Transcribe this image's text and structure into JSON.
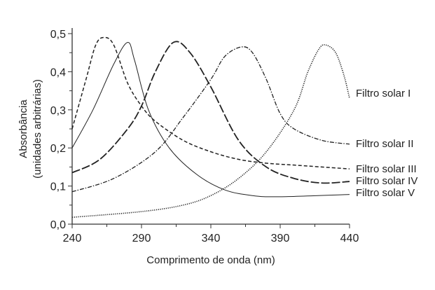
{
  "chart_data": {
    "type": "line",
    "title": "",
    "xlabel": "Comprimento de onda (nm)",
    "ylabel_line1": "Absorbância",
    "ylabel_line2": "(unidades arbitrárias)",
    "xlim": [
      240,
      440
    ],
    "ylim": [
      0,
      0.5
    ],
    "xticks": [
      240,
      290,
      340,
      390,
      440
    ],
    "xtick_labels": [
      "240",
      "290",
      "340",
      "390",
      "440"
    ],
    "yticks": [
      0,
      0.1,
      0.2,
      0.3,
      0.4,
      0.5
    ],
    "ytick_labels": [
      "0,0",
      "0,1",
      "0,2",
      "0,3",
      "0,4",
      "0,5"
    ],
    "grid": false,
    "legend": "inline labels at right end of curves",
    "series": [
      {
        "name": "Filtro solar I",
        "style": "dotted",
        "x": [
          240,
          290,
          320,
          340,
          360,
          380,
          400,
          410,
          418,
          423,
          430,
          436,
          440
        ],
        "y": [
          0.018,
          0.033,
          0.05,
          0.075,
          0.12,
          0.19,
          0.3,
          0.4,
          0.46,
          0.47,
          0.45,
          0.39,
          0.33
        ]
      },
      {
        "name": "Filtro solar II",
        "style": "dash-dot",
        "x": [
          240,
          270,
          300,
          320,
          340,
          350,
          362,
          370,
          380,
          390,
          400,
          420,
          440
        ],
        "y": [
          0.085,
          0.12,
          0.19,
          0.28,
          0.38,
          0.44,
          0.465,
          0.45,
          0.38,
          0.29,
          0.25,
          0.22,
          0.21
        ]
      },
      {
        "name": "Filtro solar III",
        "style": "short-dash",
        "x": [
          240,
          250,
          257,
          263,
          270,
          280,
          290,
          300,
          320,
          340,
          360,
          380,
          400,
          440
        ],
        "y": [
          0.25,
          0.38,
          0.47,
          0.49,
          0.47,
          0.37,
          0.31,
          0.27,
          0.22,
          0.19,
          0.17,
          0.16,
          0.155,
          0.145
        ]
      },
      {
        "name": "Filtro solar IV",
        "style": "long-dash",
        "x": [
          240,
          260,
          280,
          290,
          300,
          313,
          325,
          340,
          360,
          380,
          400,
          420,
          440
        ],
        "y": [
          0.135,
          0.17,
          0.25,
          0.31,
          0.4,
          0.477,
          0.45,
          0.36,
          0.22,
          0.15,
          0.12,
          0.108,
          0.112
        ]
      },
      {
        "name": "Filtro solar V",
        "style": "solid",
        "x": [
          240,
          255,
          270,
          280,
          285,
          295,
          310,
          330,
          350,
          370,
          390,
          440
        ],
        "y": [
          0.2,
          0.3,
          0.42,
          0.477,
          0.43,
          0.3,
          0.2,
          0.13,
          0.09,
          0.075,
          0.072,
          0.078
        ]
      }
    ]
  }
}
